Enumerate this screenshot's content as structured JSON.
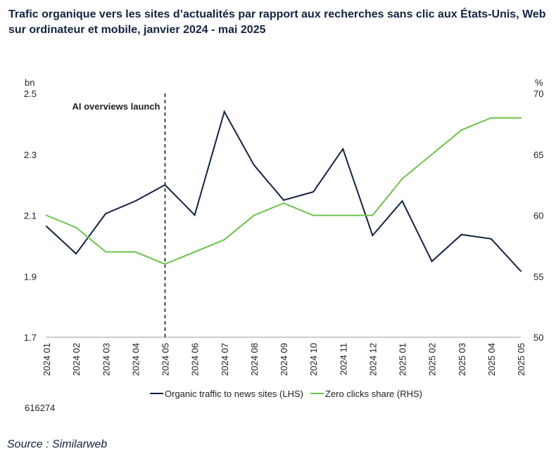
{
  "title": "Trafic organique vers les sites d’actualités par rapport aux recherches sans clic aux États-Unis, Web sur ordinateur et mobile, janvier 2024 - mai 2025",
  "note": "616274",
  "source": "Source : Similarweb",
  "colors": {
    "traffic": "#132340",
    "zero": "#6cc24a"
  },
  "chart_data": {
    "type": "line",
    "title": "Trafic organique vers les sites d’actualités par rapport aux recherches sans clic aux États-Unis, Web sur ordinateur et mobile, janvier 2024 - mai 2025",
    "categories": [
      "2024 01",
      "2024 02",
      "2024 03",
      "2024 04",
      "2024 05",
      "2024 06",
      "2024 07",
      "2024 08",
      "2024 09",
      "2024 10",
      "2024 11",
      "2024 12",
      "2025 01",
      "2025 02",
      "2025 03",
      "2025 04",
      "2025 05"
    ],
    "y_left": {
      "unit": "bn",
      "ylim": [
        1.7,
        2.5
      ],
      "ticks": [
        "1.7",
        "1.9",
        "2.1",
        "2.3",
        "2.5"
      ]
    },
    "y_right": {
      "unit": "%",
      "ylim": [
        50,
        70
      ],
      "ticks": [
        "50",
        "55",
        "60",
        "65",
        "70"
      ]
    },
    "series": [
      {
        "name": "Organic traffic to news sites (LHS)",
        "axis": "left",
        "values": [
          2.064,
          1.974,
          2.106,
          2.147,
          2.2,
          2.101,
          2.44,
          2.265,
          2.15,
          2.177,
          2.318,
          2.034,
          2.147,
          1.949,
          2.037,
          2.023,
          1.917
        ]
      },
      {
        "name": "Zero clicks share (RHS)",
        "axis": "right",
        "values": [
          60,
          59,
          57,
          57,
          56,
          57,
          58,
          60,
          61,
          60,
          60,
          60,
          63,
          65,
          67,
          68,
          68
        ]
      }
    ],
    "annotation": {
      "label": "AI overviews launch",
      "at": "2024 05"
    },
    "legend": "bottom",
    "grid": false
  }
}
